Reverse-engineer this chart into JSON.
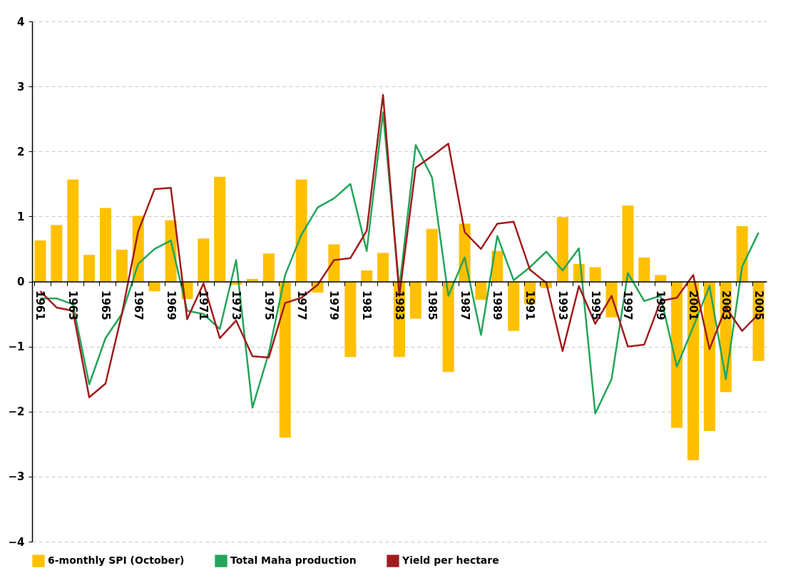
{
  "chart_data": {
    "type": "bar",
    "categories": [
      "1961",
      null,
      "1963",
      null,
      "1965",
      null,
      "1967",
      null,
      "1969",
      null,
      "1971",
      null,
      "1973",
      null,
      "1975",
      null,
      "1977",
      null,
      "1979",
      null,
      "1981",
      null,
      "1983",
      null,
      "1985",
      null,
      "1987",
      null,
      "1989",
      null,
      "1991",
      null,
      "1993",
      null,
      "1995",
      null,
      "1997",
      null,
      "1999",
      null,
      "2001",
      null,
      "2003",
      null,
      "2005"
    ],
    "series": [
      {
        "name": "6-monthly SPI (October)",
        "color": "#ffc000",
        "values": [
          0.63,
          0.87,
          1.57,
          0.41,
          1.13,
          0.49,
          1.01,
          -0.15,
          0.94,
          -0.27,
          0.66,
          1.61,
          -0.05,
          0.04,
          0.43,
          -2.4,
          1.57,
          -0.17,
          0.57,
          -1.16,
          0.17,
          0.44,
          -1.16,
          -0.57,
          0.81,
          -1.39,
          0.89,
          -0.28,
          0.47,
          -0.76,
          -0.35,
          -0.1,
          0.99,
          0.27,
          0.22,
          -0.55,
          1.17,
          0.37,
          0.1,
          -2.25,
          -2.75,
          -2.3,
          -1.7,
          0.85,
          -1.22
        ]
      },
      {
        "name": "Total Maha production",
        "type": "line",
        "color": "#23a55a",
        "values": [
          -0.26,
          -0.26,
          -0.35,
          -1.58,
          -0.87,
          -0.5,
          0.27,
          0.5,
          0.63,
          -0.45,
          -0.5,
          -0.73,
          0.33,
          -1.94,
          -1.1,
          0.1,
          0.72,
          1.14,
          1.28,
          1.5,
          0.47,
          2.6,
          -0.1,
          2.1,
          1.6,
          -0.22,
          0.37,
          -0.82,
          0.7,
          0.02,
          0.22,
          0.46,
          0.17,
          0.51,
          -2.03,
          -1.5,
          0.13,
          -0.3,
          -0.22,
          -1.31,
          -0.7,
          -0.07,
          -1.5,
          0.23,
          0.75
        ]
      },
      {
        "name": "Yield per hectare",
        "type": "line",
        "color": "#a01c1c",
        "values": [
          -0.15,
          -0.4,
          -0.45,
          -1.78,
          -1.57,
          -0.5,
          0.77,
          1.42,
          1.44,
          -0.58,
          -0.03,
          -0.87,
          -0.6,
          -1.15,
          -1.17,
          -0.33,
          -0.25,
          -0.05,
          0.33,
          0.36,
          0.78,
          2.87,
          -0.22,
          1.75,
          1.93,
          2.12,
          0.76,
          0.5,
          0.89,
          0.92,
          0.18,
          -0.02,
          -1.07,
          -0.07,
          -0.65,
          -0.22,
          -1.0,
          -0.97,
          -0.3,
          -0.25,
          0.1,
          -1.04,
          -0.4,
          -0.76,
          -0.5
        ]
      }
    ],
    "ylim": [
      -4,
      4
    ],
    "yticks": [
      -4,
      -3,
      -2,
      -1,
      0,
      1,
      2,
      3,
      4
    ],
    "grid": "y",
    "legend": "bottom",
    "line_style": "solid"
  }
}
